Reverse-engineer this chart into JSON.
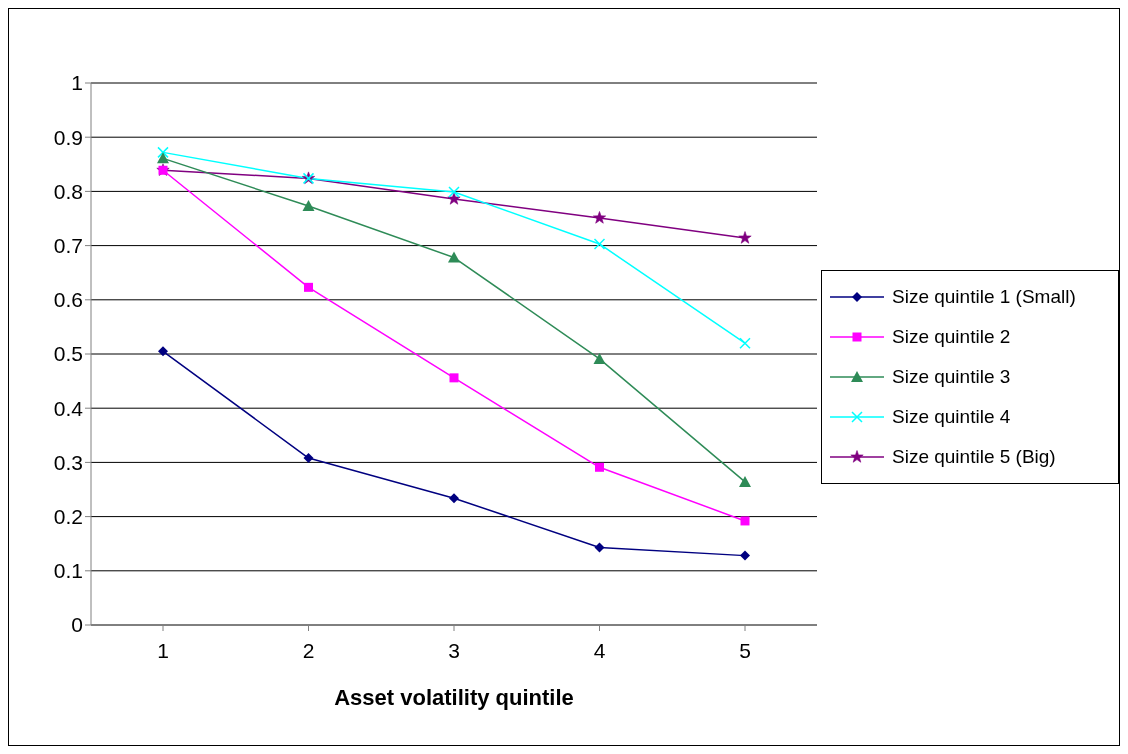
{
  "chart_data": {
    "type": "line",
    "xlabel": "Asset volatility quintile",
    "categories": [
      "1",
      "2",
      "3",
      "4",
      "5"
    ],
    "series": [
      {
        "name": "Size quintile 1 (Small)",
        "color": "#000080",
        "marker": "diamond",
        "values": [
          0.505,
          0.308,
          0.234,
          0.143,
          0.128
        ]
      },
      {
        "name": "Size quintile 2",
        "color": "#ff00ff",
        "marker": "square",
        "values": [
          0.839,
          0.623,
          0.456,
          0.291,
          0.192
        ]
      },
      {
        "name": "Size quintile 3",
        "color": "#2e8b57",
        "marker": "triangle",
        "values": [
          0.861,
          0.773,
          0.678,
          0.491,
          0.264
        ]
      },
      {
        "name": "Size quintile 4",
        "color": "#00ffff",
        "marker": "cross",
        "values": [
          0.872,
          0.824,
          0.799,
          0.703,
          0.52
        ]
      },
      {
        "name": "Size quintile 5 (Big)",
        "color": "#800080",
        "marker": "star",
        "values": [
          0.839,
          0.824,
          0.786,
          0.751,
          0.714
        ]
      }
    ],
    "ylim": [
      0,
      1
    ],
    "yticks": [
      0,
      0.1,
      0.2,
      0.3,
      0.4,
      0.5,
      0.6,
      0.7,
      0.8,
      0.9,
      1
    ],
    "grid": "y",
    "legend": "right"
  }
}
